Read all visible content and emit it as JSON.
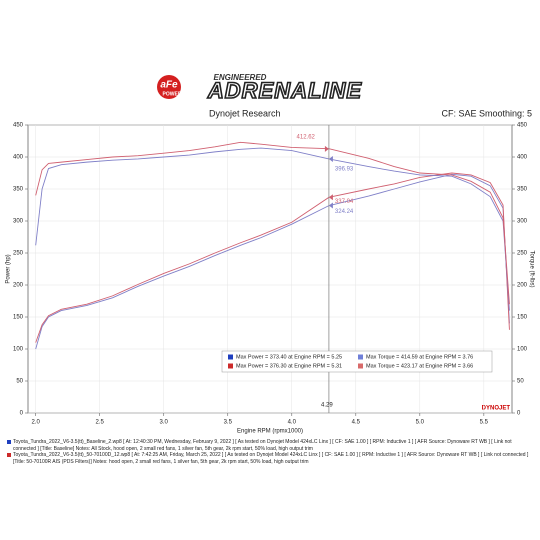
{
  "header": {
    "brand": "aFe",
    "brand_sub": "POWER",
    "tagline": "ENGINEERED",
    "headline": "ADRENALINE",
    "left_note": "Dynojet Research",
    "right_note": "CF: SAE Smoothing: 5"
  },
  "chart_data": {
    "type": "line",
    "xlabel": "Engine RPM (rpmx1000)",
    "ylabel": "Power (hp)",
    "y2label": "Torque (ft-lbs)",
    "x": [
      2.0,
      2.05,
      2.1,
      2.2,
      2.4,
      2.6,
      2.8,
      3.0,
      3.2,
      3.4,
      3.6,
      3.76,
      4.0,
      4.29,
      4.6,
      4.8,
      5.0,
      5.25,
      5.4,
      5.55,
      5.65,
      5.7
    ],
    "series": [
      {
        "color": "#8080c8",
        "values": [
          100,
          135,
          150,
          160,
          168,
          180,
          198,
          214,
          229,
          246,
          262,
          274,
          295,
          324,
          339,
          350,
          361,
          373,
          370,
          355,
          320,
          140
        ],
        "cursor_value": 324.24
      },
      {
        "color": "#d06070",
        "values": [
          110,
          138,
          152,
          162,
          170,
          183,
          201,
          218,
          233,
          250,
          266,
          278,
          298,
          337,
          350,
          358,
          368,
          375,
          372,
          360,
          325,
          130
        ],
        "cursor_value": 337.04
      },
      {
        "color": "#8080c8",
        "axis": "y2",
        "values": [
          262,
          350,
          382,
          388,
          392,
          395,
          397,
          400,
          403,
          408,
          412,
          414,
          410,
          397,
          385,
          378,
          372,
          370,
          358,
          338,
          300,
          160
        ],
        "cursor_value": 396.93
      },
      {
        "color": "#d06070",
        "axis": "y2",
        "values": [
          340,
          380,
          390,
          392,
          396,
          400,
          402,
          406,
          410,
          416,
          423,
          420,
          415,
          413,
          398,
          385,
          375,
          372,
          362,
          345,
          305,
          170
        ],
        "cursor_value": 412.62
      }
    ],
    "xlim": [
      1.94,
      5.72
    ],
    "xticks": [
      {
        "value": 2,
        "label": "2.0"
      },
      2.5,
      {
        "value": 3,
        "label": "3.0"
      },
      3.5,
      {
        "value": 4,
        "label": "4.0"
      },
      4.5,
      {
        "value": 5,
        "label": "5.0"
      },
      5.5
    ],
    "ylim": [
      0,
      450
    ],
    "yticks": [
      0,
      50,
      100,
      150,
      200,
      250,
      300,
      350,
      400,
      450
    ],
    "y2lim": [
      0,
      450
    ],
    "y2ticks": [
      0,
      50,
      100,
      150,
      200,
      250,
      300,
      350,
      400,
      450
    ],
    "grid": true,
    "cursor_x": 4.29,
    "legend": [
      {
        "label": "Max Power = 373.40 at Engine RPM = 5.25",
        "color": "#1f3fbf"
      },
      {
        "label": "Max Torque = 414.59 at Engine RPM = 3.76",
        "color": "#6f7fd8"
      },
      {
        "label": "Max Power = 376.30 at Engine RPM = 5.31",
        "color": "#cc2a2a"
      },
      {
        "label": "Max Torque = 423.17 at Engine RPM = 3.66",
        "color": "#d86a6a"
      }
    ],
    "watermark": "DYNOJET"
  },
  "footer": [
    {
      "color": "#1f3fbf",
      "text": "Toyota_Tundra_2022_V6-3.5(tt)_Baseline_2.wp8 [ At: 12:40:30 PM, Wednesday, February 9, 2022 ] [ As tested on Dynojet Model 424xLC Linx ] [ CF: SAE 1.00 ] [ RPM: Inductive 1 ] [ AFR Source: Dynoware RT WB ] [ Link not connected ] [Title: Baseline] Notes: All Stock, hood open, 2 small red fans, 1 silver fan, 5th gear, 2k rpm start, 50% load, high output trim"
    },
    {
      "color": "#cc2a2a",
      "text": "Toyota_Tundra_2022_V6-3.5(tt)_50-70100D_12.wp8 [ At: 7:42:25 AM, Friday, March 25, 2022 ] [ As tested on Dynojet Model 424xLC Linx ] [ CF: SAE 1.00 ] [ RPM: Inductive 1 ] [ AFR Source: Dynoware RT WB ] [ Link not connected ] [Title: 50-70100R AIS (PDS Filters)] Notes: hood open, 2 small red fans, 1 silver fan, 5th gear, 2k rpm start, 50% load, high output trim"
    }
  ]
}
